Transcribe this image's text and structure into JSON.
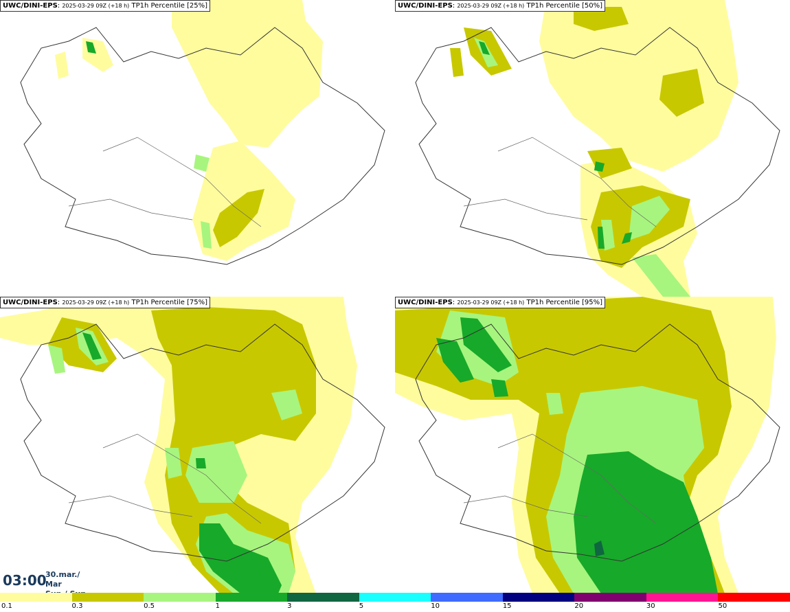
{
  "panels": [
    {
      "model": "UWC/DINI-EPS",
      "sep": ": ",
      "run": "2025-03-29 09Z (+18 h)",
      "param": " TP1h Percentile ",
      "pct": "[25%]"
    },
    {
      "model": "UWC/DINI-EPS",
      "sep": ": ",
      "run": "2025-03-29 09Z (+18 h)",
      "param": " TP1h Percentile ",
      "pct": "[50%]"
    },
    {
      "model": "UWC/DINI-EPS",
      "sep": ": ",
      "run": "2025-03-29 09Z (+18 h)",
      "param": " TP1h Percentile ",
      "pct": "[75%]"
    },
    {
      "model": "UWC/DINI-EPS",
      "sep": ": ",
      "run": "2025-03-29 09Z (+18 h)",
      "param": " TP1h Percentile ",
      "pct": "[95%]"
    }
  ],
  "valid_time": {
    "time": "03:00",
    "date_line1": "30.mar./ Mar",
    "date_line2": "Sun./ Sun"
  },
  "colorbar": {
    "colors": [
      "#fffc9e",
      "#c8c800",
      "#a7f57e",
      "#17a92a",
      "#0f6640",
      "#19ffff",
      "#3f6bff",
      "#000080",
      "#800070",
      "#ff1493",
      "#ff0000"
    ],
    "labels": [
      "0.1",
      "0.3",
      "0.5",
      "1",
      "3",
      "5",
      "10",
      "15",
      "20",
      "30",
      "50"
    ]
  },
  "palette": {
    "light_yellow": "#fffc9e",
    "olive": "#c8c800",
    "light_green": "#a7f57e",
    "green": "#17a92a",
    "dark_green": "#0f6640",
    "coast": "#333333"
  }
}
